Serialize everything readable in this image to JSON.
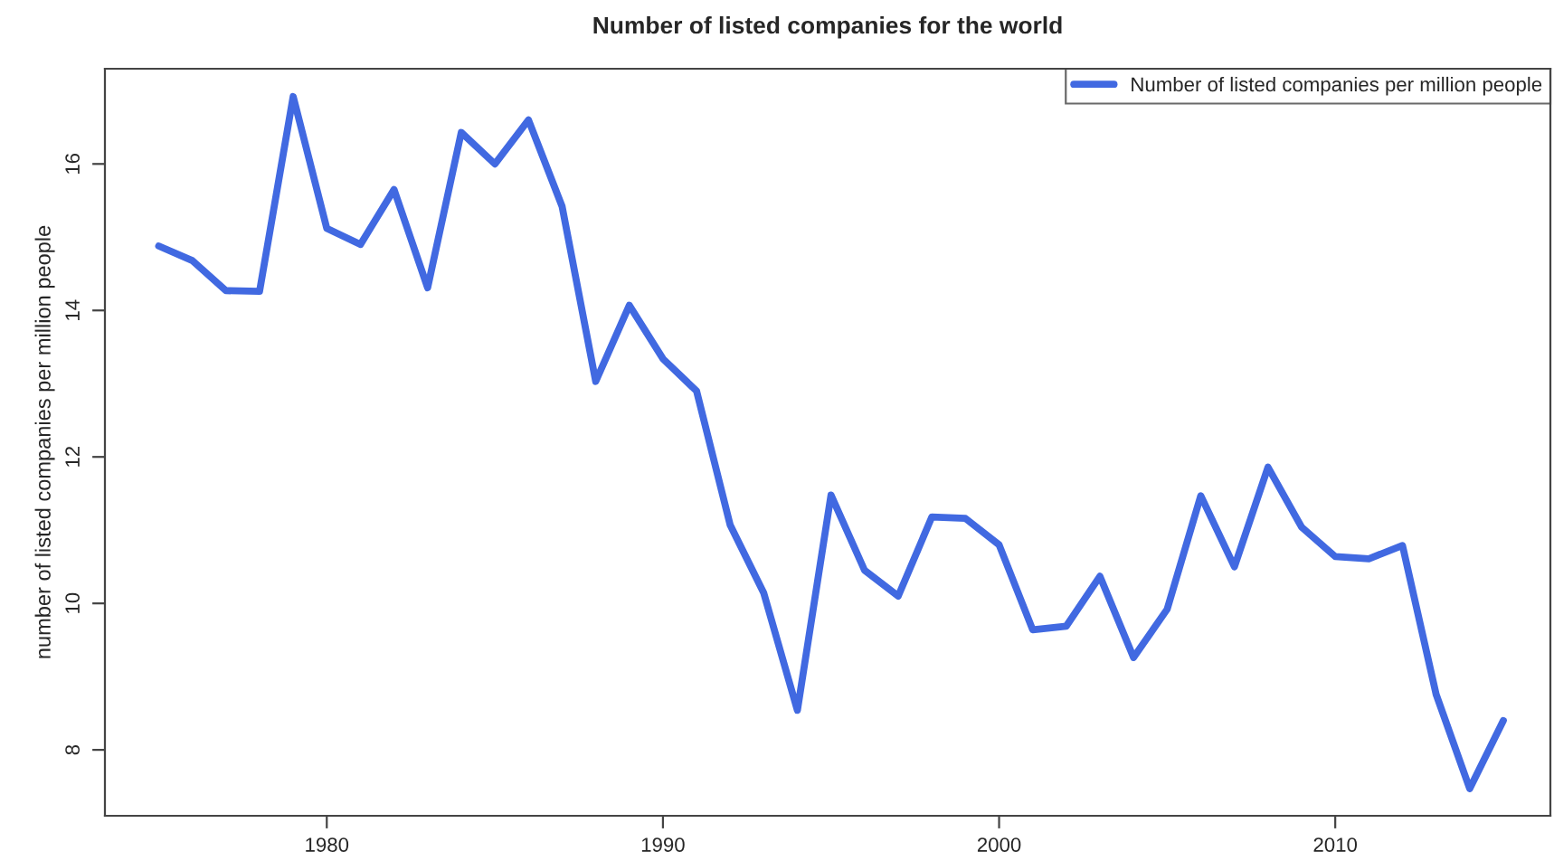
{
  "chart_data": {
    "type": "line",
    "title": "Number of listed companies for the world",
    "ylabel": "number of listed companies per million people",
    "x": [
      1975,
      1976,
      1977,
      1978,
      1979,
      1980,
      1981,
      1982,
      1983,
      1984,
      1985,
      1986,
      1987,
      1988,
      1989,
      1990,
      1991,
      1992,
      1993,
      1994,
      1995,
      1996,
      1997,
      1998,
      1999,
      2000,
      2001,
      2002,
      2003,
      2004,
      2005,
      2006,
      2007,
      2008,
      2009,
      2010,
      2011,
      2012,
      2013,
      2014,
      2015
    ],
    "series": [
      {
        "name": "Number of listed companies per million people",
        "color": "#4169e1",
        "values": [
          14.88,
          14.68,
          14.27,
          14.26,
          16.92,
          15.12,
          14.9,
          15.65,
          14.31,
          16.43,
          16.0,
          16.6,
          15.42,
          13.03,
          14.07,
          13.34,
          12.9,
          11.07,
          10.14,
          8.54,
          11.48,
          10.45,
          10.1,
          11.18,
          11.16,
          10.8,
          9.64,
          9.69,
          10.37,
          9.26,
          9.92,
          11.47,
          10.5,
          11.86,
          11.04,
          10.64,
          10.61,
          10.79,
          8.76,
          7.47,
          8.4
        ]
      }
    ],
    "xlim": [
      1973.4,
      2016.4
    ],
    "ylim": [
      7.1,
      17.3
    ],
    "xticks": [
      1980,
      1990,
      2000,
      2010
    ],
    "yticks": [
      8,
      10,
      12,
      14,
      16
    ],
    "grid": false,
    "legend": "top right",
    "marker": "none",
    "line_style": "solid"
  }
}
